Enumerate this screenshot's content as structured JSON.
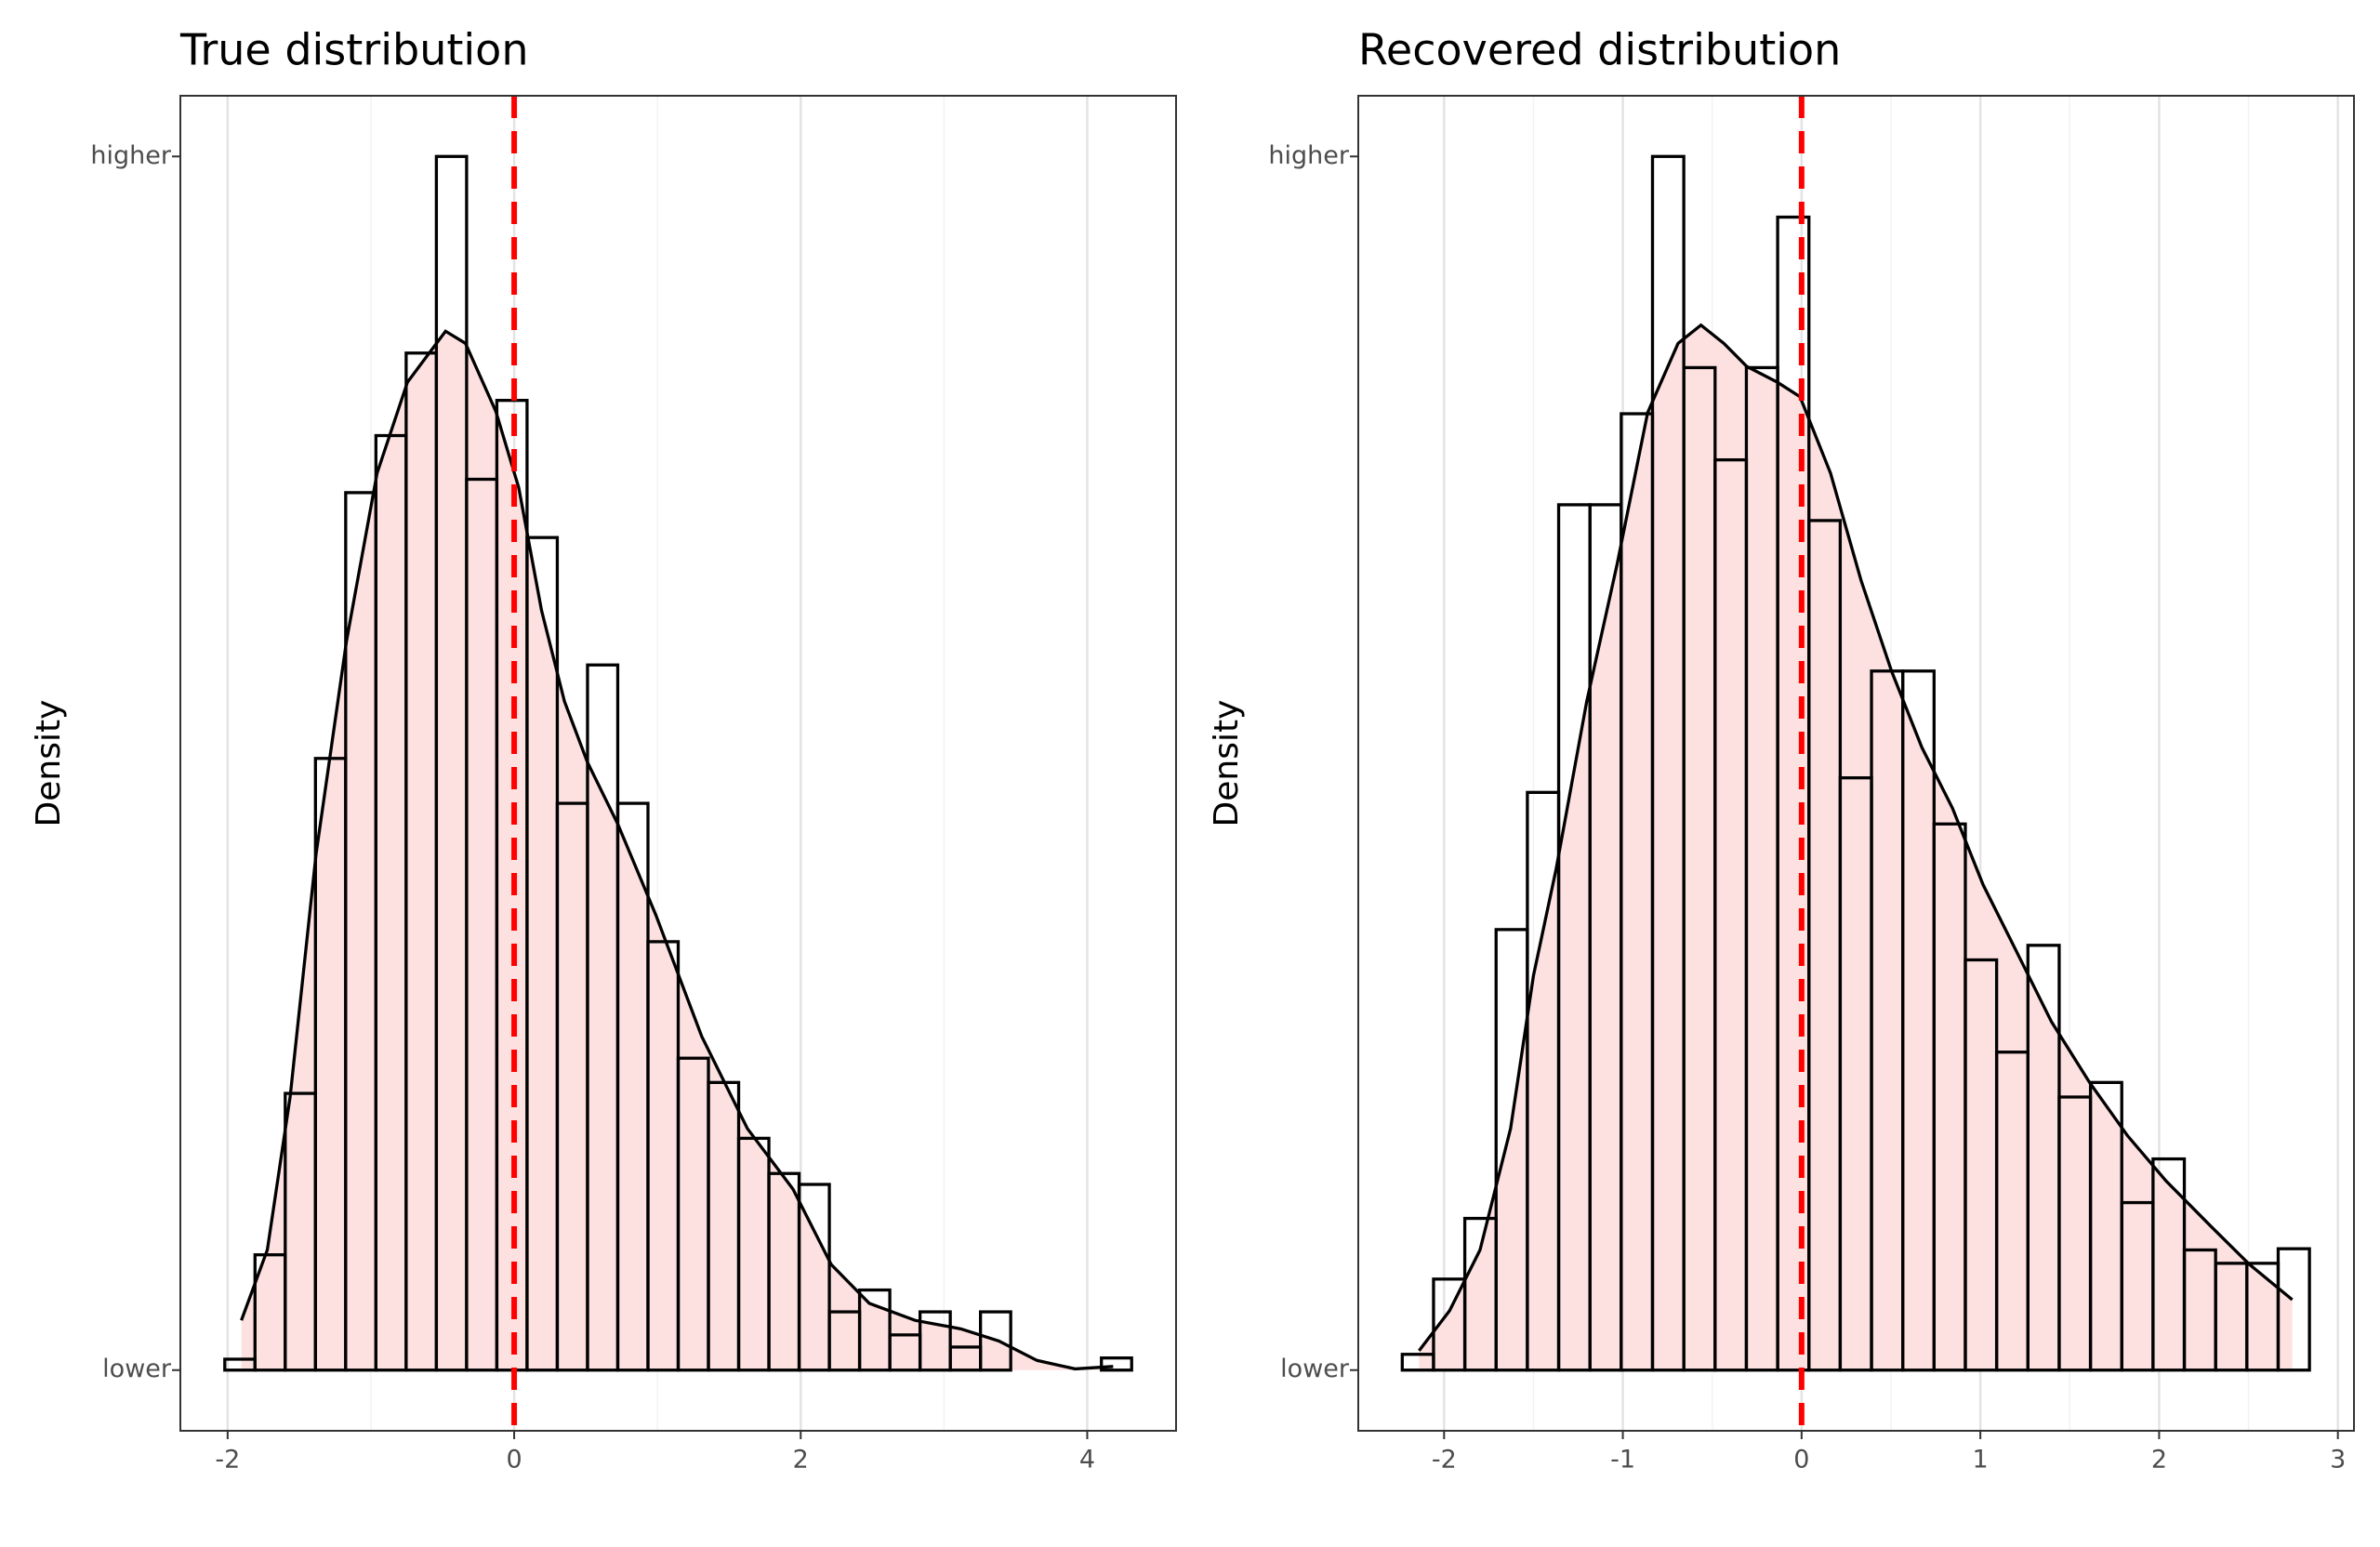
{
  "chart_data": [
    {
      "type": "histogram",
      "title": "True distribution",
      "ylabel": "Density",
      "bins": [
        -2.02,
        -1.809,
        -1.598,
        -1.387,
        -1.176,
        -0.965,
        -0.754,
        -0.543,
        -0.332,
        -0.121,
        0.09,
        0.301,
        0.512,
        0.723,
        0.934,
        1.145,
        1.356,
        1.567,
        1.778,
        1.989,
        2.2,
        2.411,
        2.622,
        2.833,
        3.044,
        3.255,
        3.466,
        3.677,
        3.888,
        4.099,
        4.31
      ],
      "values": [
        0.009,
        0.095,
        0.228,
        0.504,
        0.723,
        0.77,
        0.838,
        1.0,
        0.734,
        0.799,
        0.686,
        0.467,
        0.581,
        0.467,
        0.353,
        0.257,
        0.237,
        0.191,
        0.162,
        0.153,
        0.048,
        0.066,
        0.029,
        0.048,
        0.019,
        0.048,
        0,
        0,
        0,
        0.01
      ],
      "density": {
        "x": [
          -1.904,
          -1.723,
          -1.564,
          -1.383,
          -1.17,
          -0.957,
          -0.745,
          -0.479,
          -0.34,
          -0.128,
          0.032,
          0.191,
          0.351,
          0.511,
          0.723,
          0.989,
          1.309,
          1.628,
          1.947,
          2.213,
          2.479,
          2.798,
          3.117,
          3.383,
          3.649,
          3.915,
          4.181
        ],
        "y": [
          0.041,
          0.099,
          0.225,
          0.425,
          0.601,
          0.739,
          0.814,
          0.856,
          0.846,
          0.79,
          0.727,
          0.626,
          0.551,
          0.501,
          0.45,
          0.375,
          0.275,
          0.199,
          0.149,
          0.087,
          0.055,
          0.041,
          0.034,
          0.024,
          0.008,
          0.001,
          0.003
        ]
      },
      "fill": "#fde0e0",
      "edgecolor": "#000000",
      "vline": {
        "value": 0,
        "color": "#ff0000"
      },
      "xlim": [
        -2.33,
        4.62
      ],
      "xticks": [
        -2,
        0,
        2,
        4
      ],
      "ylim": [
        -0.05,
        1.05
      ],
      "yticks": [
        {
          "value": 0,
          "label": "lower"
        },
        {
          "value": 1,
          "label": "higher"
        }
      ],
      "grid": true
    },
    {
      "type": "histogram",
      "title": "Recovered distribution",
      "ylabel": "Density",
      "bins": [
        -2.234,
        -2.059,
        -1.884,
        -1.709,
        -1.534,
        -1.359,
        -1.184,
        -1.009,
        -0.834,
        -0.659,
        -0.484,
        -0.309,
        -0.134,
        0.041,
        0.216,
        0.391,
        0.566,
        0.741,
        0.916,
        1.091,
        1.266,
        1.441,
        1.616,
        1.791,
        1.966,
        2.141,
        2.316,
        2.491,
        2.666,
        2.841
      ],
      "values": [
        0.013,
        0.075,
        0.125,
        0.363,
        0.476,
        0.713,
        0.713,
        0.788,
        1.0,
        0.826,
        0.75,
        0.826,
        0.95,
        0.7,
        0.488,
        0.576,
        0.576,
        0.45,
        0.338,
        0.262,
        0.35,
        0.225,
        0.237,
        0.138,
        0.174,
        0.099,
        0.088,
        0.088,
        0.1
      ],
      "density": {
        "x": [
          -2.14,
          -1.969,
          -1.799,
          -1.628,
          -1.5,
          -1.373,
          -1.202,
          -1.032,
          -0.861,
          -0.691,
          -0.563,
          -0.435,
          -0.307,
          -0.136,
          -0.009,
          0.162,
          0.332,
          0.503,
          0.673,
          0.844,
          1.015,
          1.185,
          1.398,
          1.611,
          1.824,
          2.038,
          2.293,
          2.506,
          2.745
        ],
        "y": [
          0.016,
          0.049,
          0.099,
          0.199,
          0.325,
          0.413,
          0.551,
          0.664,
          0.789,
          0.846,
          0.861,
          0.846,
          0.827,
          0.814,
          0.802,
          0.739,
          0.651,
          0.576,
          0.513,
          0.463,
          0.4,
          0.35,
          0.287,
          0.237,
          0.193,
          0.156,
          0.118,
          0.087,
          0.058
        ]
      },
      "fill": "#fde0e0",
      "edgecolor": "#000000",
      "vline": {
        "value": 0,
        "color": "#ff0000"
      },
      "xlim": [
        -2.48,
        3.09
      ],
      "xticks": [
        -2,
        -1,
        0,
        1,
        2,
        3
      ],
      "ylim": [
        -0.05,
        1.05
      ],
      "yticks": [
        {
          "value": 0,
          "label": "lower"
        },
        {
          "value": 1,
          "label": "higher"
        }
      ],
      "grid": true
    }
  ]
}
